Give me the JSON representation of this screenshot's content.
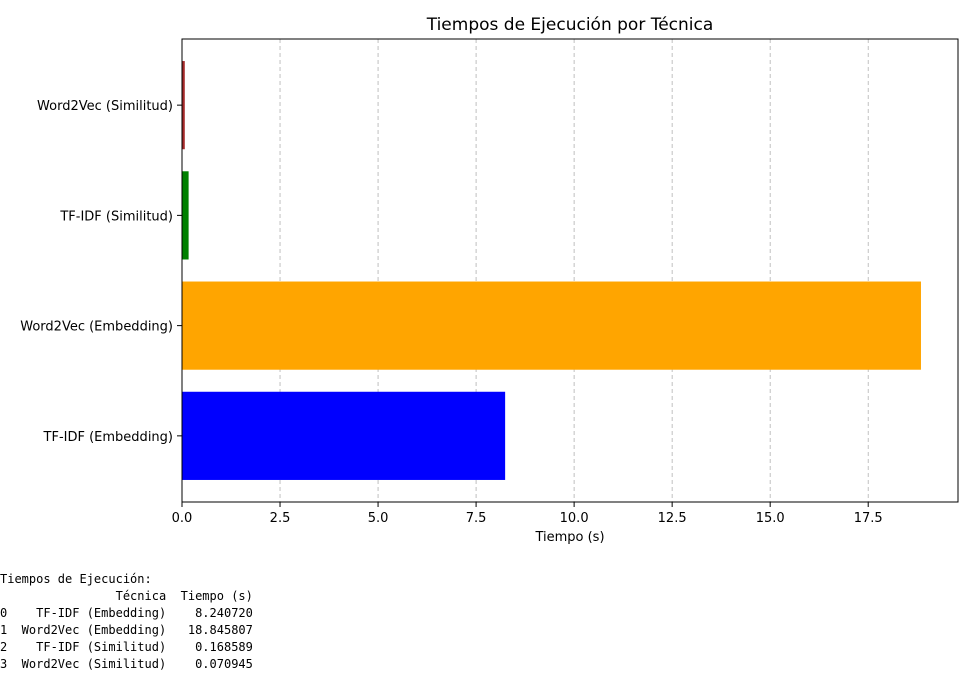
{
  "chart_data": {
    "type": "bar",
    "orientation": "horizontal",
    "title": "Tiempos de Ejecución por Técnica",
    "xlabel": "Tiempo (s)",
    "ylabel": "",
    "xlim": [
      0,
      19.79
    ],
    "xticks": [
      "0.0",
      "2.5",
      "5.0",
      "7.5",
      "10.0",
      "12.5",
      "15.0",
      "17.5"
    ],
    "grid": "x, dashed",
    "bars": [
      {
        "category": "TF-IDF (Embedding)",
        "value": 8.24072,
        "color": "#0000ff"
      },
      {
        "category": "Word2Vec (Embedding)",
        "value": 18.845807,
        "color": "#ffa500"
      },
      {
        "category": "TF-IDF (Similitud)",
        "value": 0.168589,
        "color": "#008000"
      },
      {
        "category": "Word2Vec (Similitud)",
        "value": 0.070945,
        "color": "#a52a2a"
      }
    ]
  },
  "console": {
    "heading": "Tiempos de Ejecución:",
    "table_header": [
      "Técnica",
      "Tiempo (s)"
    ],
    "rows": [
      {
        "index": "0",
        "tecnica": "TF-IDF (Embedding)",
        "tiempo": "8.240720"
      },
      {
        "index": "1",
        "tecnica": "Word2Vec (Embedding)",
        "tiempo": "18.845807"
      },
      {
        "index": "2",
        "tecnica": "TF-IDF (Similitud)",
        "tiempo": "0.168589"
      },
      {
        "index": "3",
        "tecnica": "Word2Vec (Similitud)",
        "tiempo": "0.070945"
      }
    ]
  }
}
